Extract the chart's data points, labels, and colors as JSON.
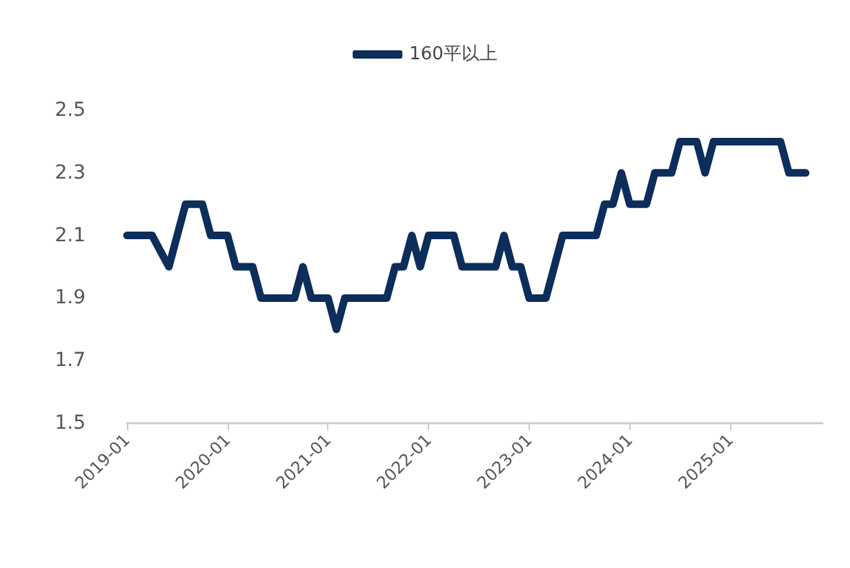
{
  "chart_data": {
    "type": "line",
    "categories": [
      "2019-01",
      null,
      null,
      null,
      null,
      null,
      null,
      null,
      null,
      null,
      null,
      null,
      "2020-01",
      null,
      null,
      null,
      null,
      null,
      null,
      null,
      null,
      null,
      null,
      null,
      "2021-01",
      null,
      null,
      null,
      null,
      null,
      null,
      null,
      null,
      null,
      null,
      null,
      "2022-01",
      null,
      null,
      null,
      null,
      null,
      null,
      null,
      null,
      null,
      null,
      null,
      "2023-01",
      null,
      null,
      null,
      null,
      null,
      null,
      null,
      null,
      null,
      null,
      null,
      "2024-01",
      null,
      null,
      null,
      null,
      null,
      null,
      null,
      null,
      null,
      null,
      null,
      "2025-01",
      null,
      null,
      null,
      null,
      null,
      null,
      null,
      null,
      null,
      null,
      null
    ],
    "series": [
      {
        "name": "160平以上",
        "color": "#0d2d5a",
        "values": [
          2.1,
          2.1,
          2.1,
          2.1,
          2.05,
          2.0,
          2.1,
          2.2,
          2.2,
          2.2,
          2.1,
          2.1,
          2.1,
          2.0,
          2.0,
          2.0,
          1.9,
          1.9,
          1.9,
          1.9,
          1.9,
          2.0,
          1.9,
          1.9,
          1.9,
          1.8,
          1.9,
          1.9,
          1.9,
          1.9,
          1.9,
          1.9,
          2.0,
          2.0,
          2.1,
          2.0,
          2.1,
          2.1,
          2.1,
          2.1,
          2.0,
          2.0,
          2.0,
          2.0,
          2.0,
          2.1,
          2.0,
          2.0,
          1.9,
          1.9,
          1.9,
          2.0,
          2.1,
          2.1,
          2.1,
          2.1,
          2.1,
          2.2,
          2.2,
          2.3,
          2.2,
          2.2,
          2.2,
          2.3,
          2.3,
          2.3,
          2.4,
          2.4,
          2.4,
          2.3,
          2.4,
          2.4,
          2.4,
          2.4,
          2.4,
          2.4,
          2.4,
          2.4,
          2.4,
          2.3,
          2.3,
          2.3,
          null,
          null
        ]
      }
    ],
    "ylim": [
      1.5,
      2.5
    ],
    "yticks": [
      1.5,
      1.7,
      1.9,
      2.1,
      2.3,
      2.5
    ],
    "grid": false,
    "legend": "top",
    "marker": "none",
    "line_style": "solid"
  }
}
